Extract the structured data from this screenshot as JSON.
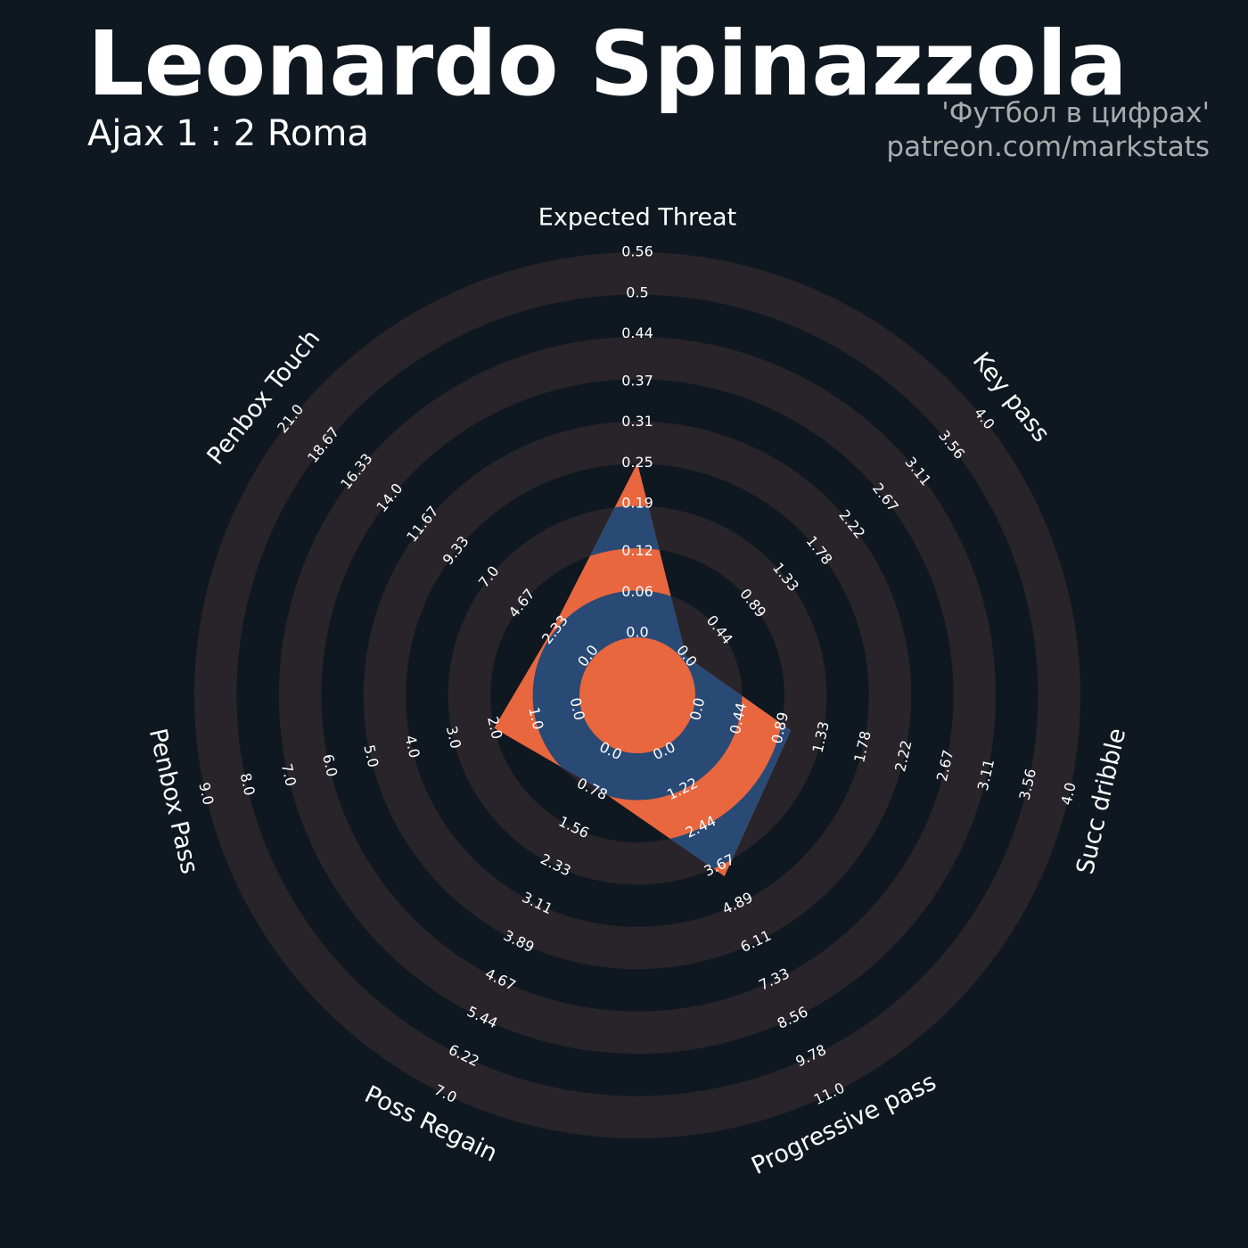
{
  "chart_data": {
    "type": "radar",
    "title": "Leonardo Spinazzola",
    "subtitle": "Ajax 1 : 2 Roma",
    "annotations": [
      "'Футбол в цифрах'",
      "patreon.com/markstats"
    ],
    "categories": [
      "Expected Threat",
      "Key pass",
      "Succ dribble",
      "Progressive pass",
      "Poss Regain",
      "Penbox Pass",
      "Penbox Touch"
    ],
    "values": [
      0.25,
      0,
      1.0,
      4.0,
      0.7,
      2.0,
      2.5
    ],
    "axes": [
      {
        "lim": [
          0,
          0.56
        ],
        "ticks": [
          {
            "value": 0,
            "label": "0.0"
          },
          0.06,
          0.12,
          0.19,
          0.25,
          0.31,
          0.37,
          0.44,
          0.5,
          0.56
        ]
      },
      {
        "lim": [
          0,
          4
        ],
        "ticks": [
          {
            "value": 0,
            "label": "0.0"
          },
          0.44,
          0.89,
          1.33,
          1.78,
          2.22,
          2.67,
          3.11,
          3.56,
          {
            "value": 4,
            "label": "4.0"
          }
        ]
      },
      {
        "lim": [
          0,
          4
        ],
        "ticks": [
          {
            "value": 0,
            "label": "0.0"
          },
          0.44,
          0.89,
          1.33,
          1.78,
          2.22,
          2.67,
          3.11,
          3.56,
          {
            "value": 4,
            "label": "4.0"
          }
        ]
      },
      {
        "lim": [
          0,
          11
        ],
        "ticks": [
          {
            "value": 0,
            "label": "0.0"
          },
          1.22,
          2.44,
          3.67,
          4.89,
          6.11,
          7.33,
          8.56,
          9.78,
          {
            "value": 11,
            "label": "11.0"
          }
        ]
      },
      {
        "lim": [
          0,
          7
        ],
        "ticks": [
          {
            "value": 0,
            "label": "0.0"
          },
          0.78,
          1.56,
          2.33,
          3.11,
          3.89,
          4.67,
          5.44,
          6.22,
          {
            "value": 7,
            "label": "7.0"
          }
        ]
      },
      {
        "lim": [
          0,
          9
        ],
        "ticks": [
          {
            "value": 0,
            "label": "0.0"
          },
          {
            "value": 1,
            "label": "1.0"
          },
          {
            "value": 2,
            "label": "2.0"
          },
          {
            "value": 3,
            "label": "3.0"
          },
          {
            "value": 4,
            "label": "4.0"
          },
          {
            "value": 5,
            "label": "5.0"
          },
          {
            "value": 6,
            "label": "6.0"
          },
          {
            "value": 7,
            "label": "7.0"
          },
          {
            "value": 8,
            "label": "8.0"
          },
          {
            "value": 9,
            "label": "9.0"
          }
        ]
      },
      {
        "lim": [
          0,
          21
        ],
        "ticks": [
          {
            "value": 0,
            "label": "0.0"
          },
          2.33,
          4.67,
          {
            "value": 7,
            "label": "7.0"
          },
          9.33,
          11.67,
          {
            "value": 14,
            "label": "14.0"
          },
          16.33,
          18.67,
          {
            "value": 21,
            "label": "21.0"
          }
        ]
      }
    ],
    "color": "#e8673f",
    "alt_color": "#284a75",
    "ring_color": "#28242a",
    "background": "#0f1820"
  }
}
